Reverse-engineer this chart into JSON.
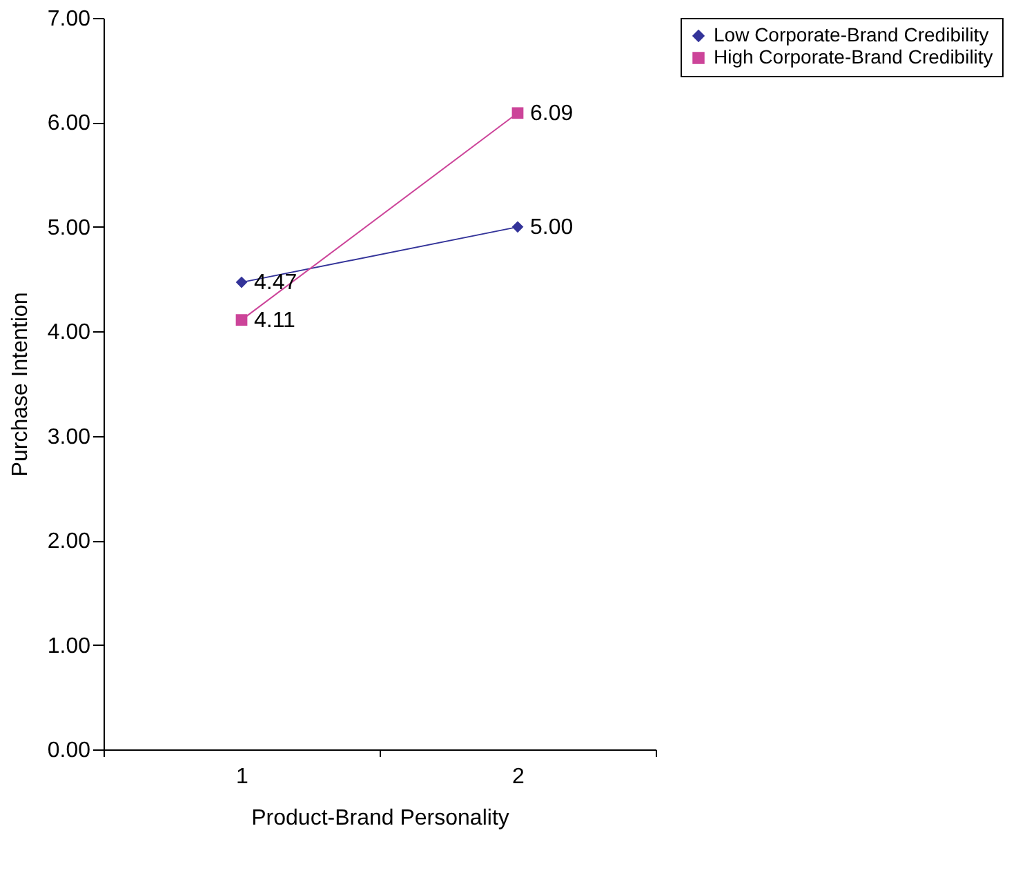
{
  "chart_data": {
    "type": "line",
    "xlabel": "Product-Brand Personality",
    "ylabel": "Purchase Intention",
    "categories": [
      "1",
      "2"
    ],
    "series": [
      {
        "name": "Low Corporate-Brand Credibility",
        "color": "#333399",
        "marker": "diamond",
        "values": [
          4.47,
          5.0
        ],
        "value_labels": [
          "4.47",
          "5.00"
        ]
      },
      {
        "name": "High Corporate-Brand Credibility",
        "color": "#cc4499",
        "marker": "square",
        "values": [
          4.11,
          6.09
        ],
        "value_labels": [
          "4.11",
          "6.09"
        ]
      }
    ],
    "ylim": [
      0,
      7
    ],
    "yticks": [
      {
        "value": 0,
        "label": "0.00"
      },
      {
        "value": 1,
        "label": "1.00"
      },
      {
        "value": 2,
        "label": "2.00"
      },
      {
        "value": 3,
        "label": "3.00"
      },
      {
        "value": 4,
        "label": "4.00"
      },
      {
        "value": 5,
        "label": "5.00"
      },
      {
        "value": 6,
        "label": "6.00"
      },
      {
        "value": 7,
        "label": "7.00"
      }
    ],
    "grid": false,
    "legend": "right",
    "line_style": "solid"
  }
}
